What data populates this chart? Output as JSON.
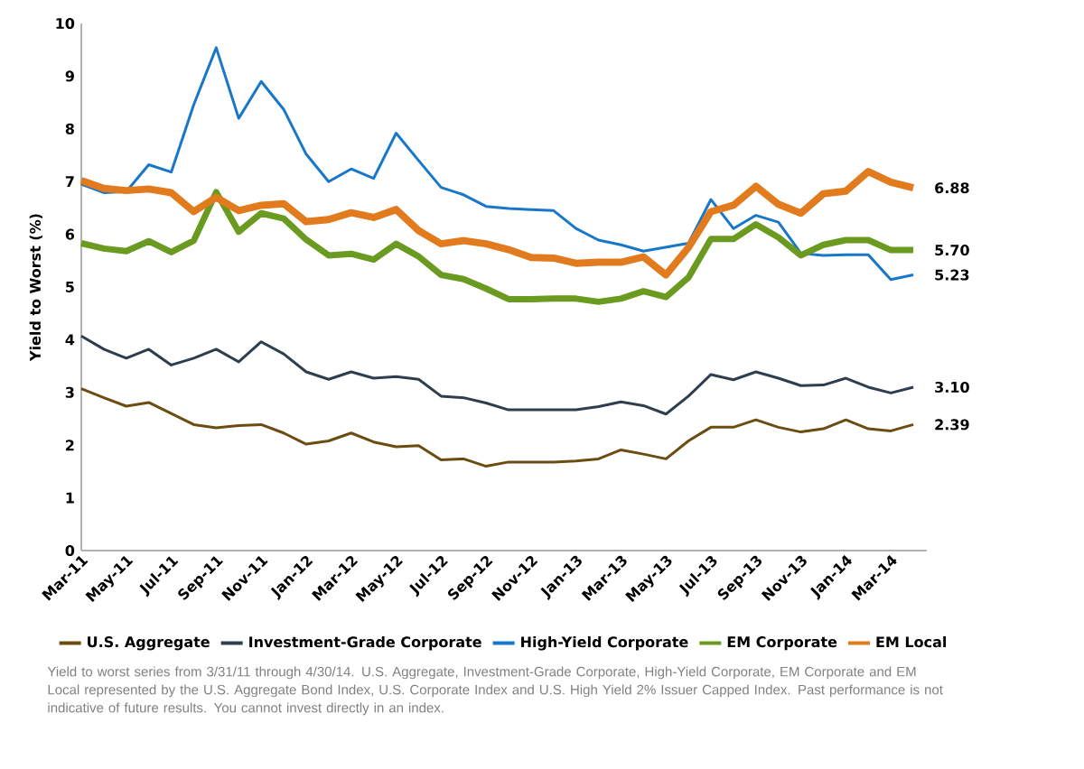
{
  "chart_data": {
    "type": "line",
    "ylabel": "Yield to Worst (%)",
    "categories": [
      "Mar-11",
      null,
      "May-11",
      null,
      "Jul-11",
      null,
      "Sep-11",
      null,
      "Nov-11",
      null,
      "Jan-12",
      null,
      "Mar-12",
      null,
      "May-12",
      null,
      "Jul-12",
      null,
      "Sep-12",
      null,
      "Nov-12",
      null,
      "Jan-13",
      null,
      "Mar-13",
      null,
      "May-13",
      null,
      "Jul-13",
      null,
      "Sep-13",
      null,
      "Nov-13",
      null,
      "Jan-14",
      null,
      "Mar-14",
      null
    ],
    "ylim": [
      0,
      10
    ],
    "yticks": [
      0,
      1,
      2,
      3,
      4,
      5,
      6,
      7,
      8,
      9,
      10
    ],
    "grid": false,
    "legend": "bottom",
    "marker": "none",
    "line_style": "solid",
    "series": [
      {
        "name": "U.S. Aggregate",
        "color": "#6b4d12",
        "values": [
          3.07,
          2.9,
          2.74,
          2.81,
          2.6,
          2.39,
          2.33,
          2.37,
          2.39,
          2.23,
          2.02,
          2.08,
          2.23,
          2.06,
          1.97,
          1.99,
          1.72,
          1.74,
          1.6,
          1.68,
          1.68,
          1.68,
          1.7,
          1.74,
          1.91,
          1.83,
          1.74,
          2.08,
          2.34,
          2.34,
          2.48,
          2.34,
          2.25,
          2.31,
          2.48,
          2.31,
          2.27,
          2.39
        ],
        "value_labels": [
          null,
          null,
          null,
          null,
          null,
          null,
          null,
          null,
          null,
          null,
          null,
          null,
          null,
          null,
          null,
          null,
          null,
          null,
          null,
          null,
          null,
          null,
          null,
          null,
          null,
          null,
          null,
          null,
          null,
          null,
          null,
          null,
          null,
          null,
          null,
          null,
          null,
          "2.39"
        ]
      },
      {
        "name": "Investment-Grade Corporate",
        "color": "#2e3e4e",
        "values": [
          4.07,
          3.82,
          3.65,
          3.82,
          3.52,
          3.65,
          3.82,
          3.58,
          3.96,
          3.73,
          3.39,
          3.25,
          3.39,
          3.27,
          3.3,
          3.25,
          2.93,
          2.9,
          2.8,
          2.67,
          2.67,
          2.67,
          2.67,
          2.73,
          2.82,
          2.75,
          2.59,
          2.93,
          3.34,
          3.24,
          3.39,
          3.27,
          3.13,
          3.14,
          3.27,
          3.1,
          2.99,
          3.1
        ],
        "value_labels": [
          null,
          null,
          null,
          null,
          null,
          null,
          null,
          null,
          null,
          null,
          null,
          null,
          null,
          null,
          null,
          null,
          null,
          null,
          null,
          null,
          null,
          null,
          null,
          null,
          null,
          null,
          null,
          null,
          null,
          null,
          null,
          null,
          null,
          null,
          null,
          null,
          null,
          "3.10"
        ]
      },
      {
        "name": "High-Yield Corporate",
        "color": "#1877c8",
        "values": [
          6.95,
          6.79,
          6.81,
          7.32,
          7.18,
          8.46,
          9.54,
          8.2,
          8.9,
          8.37,
          7.52,
          7.0,
          7.24,
          7.06,
          7.92,
          7.4,
          6.89,
          6.75,
          6.53,
          6.49,
          6.47,
          6.45,
          6.11,
          5.89,
          5.8,
          5.68,
          null,
          5.83,
          6.66,
          6.11,
          6.36,
          6.23,
          5.64,
          5.6,
          5.61,
          5.61,
          5.14,
          5.23
        ],
        "value_labels": [
          null,
          null,
          null,
          null,
          null,
          null,
          null,
          null,
          null,
          null,
          null,
          null,
          null,
          null,
          null,
          null,
          null,
          null,
          null,
          null,
          null,
          null,
          null,
          null,
          null,
          null,
          null,
          null,
          null,
          null,
          null,
          null,
          null,
          null,
          null,
          null,
          null,
          "5.23"
        ]
      },
      {
        "name": "EM Corporate",
        "color": "#6a9a1f",
        "values": [
          5.83,
          5.73,
          5.68,
          5.87,
          5.66,
          5.88,
          6.8,
          6.05,
          6.4,
          6.3,
          5.9,
          5.6,
          5.63,
          5.52,
          5.82,
          5.58,
          5.23,
          5.15,
          4.97,
          4.77,
          4.77,
          4.78,
          4.78,
          4.72,
          4.78,
          4.92,
          4.81,
          5.18,
          5.91,
          5.91,
          6.19,
          5.94,
          5.6,
          5.8,
          5.89,
          5.89,
          5.7,
          5.7
        ],
        "value_labels": [
          null,
          null,
          null,
          null,
          null,
          null,
          null,
          null,
          null,
          null,
          null,
          null,
          null,
          null,
          null,
          null,
          null,
          null,
          null,
          null,
          null,
          null,
          null,
          null,
          null,
          null,
          null,
          null,
          null,
          null,
          null,
          null,
          null,
          null,
          null,
          null,
          null,
          "5.70"
        ]
      },
      {
        "name": "EM Local",
        "color": "#e27a1e",
        "values": [
          7.02,
          6.87,
          6.83,
          6.86,
          6.79,
          6.43,
          6.7,
          6.45,
          6.55,
          6.58,
          6.24,
          6.28,
          6.41,
          6.32,
          6.47,
          6.07,
          5.82,
          5.88,
          5.82,
          5.71,
          5.56,
          5.55,
          5.45,
          5.47,
          5.47,
          5.57,
          5.23,
          5.75,
          6.43,
          6.55,
          6.91,
          6.57,
          6.4,
          6.77,
          6.82,
          7.19,
          6.99,
          6.88
        ],
        "value_labels": [
          null,
          null,
          null,
          null,
          null,
          null,
          null,
          null,
          null,
          null,
          null,
          null,
          null,
          null,
          null,
          null,
          null,
          null,
          null,
          null,
          null,
          null,
          null,
          null,
          null,
          null,
          null,
          null,
          null,
          null,
          null,
          null,
          null,
          null,
          null,
          null,
          null,
          "6.88"
        ]
      }
    ],
    "annotations": [
      "Yield to worst series from 3/31/11 through 4/30/14. U.S. Aggregate, Investment-Grade Corporate, High-Yield Corporate, EM Corporate and EM Local represented by the U.S. Aggregate Bond Index, U.S. Corporate Index and U.S. High Yield 2% Issuer Capped Index. Past performance is not indicative of future results. You cannot invest directly in an index."
    ]
  }
}
